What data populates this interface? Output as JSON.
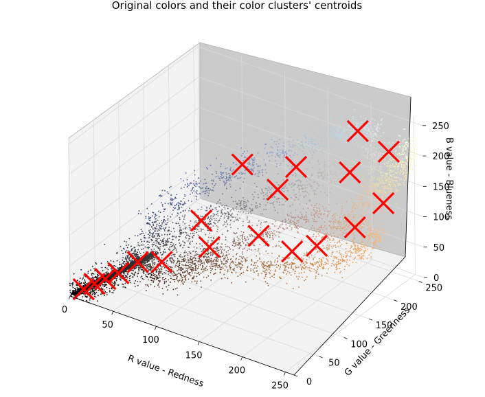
{
  "chart_data": {
    "type": "scatter",
    "projection": "3d",
    "title": "Original colors and their color clusters' centroids",
    "xlabel": "R value - Redness",
    "ylabel": "G value - Greenness",
    "zlabel": "B value - Blueness",
    "xlim": [
      0,
      260
    ],
    "ylim": [
      0,
      260
    ],
    "zlim": [
      0,
      260
    ],
    "xticks": [
      "0",
      "50",
      "100",
      "150",
      "200",
      "250"
    ],
    "yticks": [
      "0",
      "50",
      "100",
      "150",
      "200",
      "250"
    ],
    "zticks": [
      "0",
      "50",
      "100",
      "150",
      "200",
      "250"
    ],
    "grid": true,
    "series": [
      {
        "kind": "points",
        "note": "each point colored by its own RGB value",
        "values": [
          [
            8,
            8,
            8
          ],
          [
            14,
            13,
            12
          ],
          [
            20,
            19,
            18
          ],
          [
            26,
            25,
            24
          ],
          [
            33,
            31,
            30
          ],
          [
            40,
            38,
            37
          ],
          [
            47,
            45,
            44
          ],
          [
            55,
            52,
            50
          ],
          [
            65,
            58,
            52
          ],
          [
            72,
            50,
            38
          ],
          [
            88,
            60,
            42
          ],
          [
            104,
            72,
            50
          ],
          [
            120,
            86,
            60
          ],
          [
            140,
            98,
            62
          ],
          [
            162,
            110,
            62
          ],
          [
            185,
            125,
            65
          ],
          [
            205,
            140,
            70
          ],
          [
            225,
            150,
            80
          ],
          [
            240,
            165,
            95
          ],
          [
            248,
            180,
            110
          ],
          [
            70,
            70,
            75
          ],
          [
            85,
            85,
            95
          ],
          [
            100,
            100,
            110
          ],
          [
            115,
            112,
            120
          ],
          [
            130,
            128,
            132
          ],
          [
            150,
            145,
            150
          ],
          [
            170,
            165,
            165
          ],
          [
            190,
            185,
            180
          ],
          [
            210,
            205,
            195
          ],
          [
            225,
            220,
            210
          ],
          [
            60,
            70,
            110
          ],
          [
            75,
            85,
            135
          ],
          [
            90,
            105,
            160
          ],
          [
            110,
            125,
            175
          ],
          [
            130,
            145,
            190
          ],
          [
            150,
            170,
            205
          ],
          [
            170,
            195,
            215
          ],
          [
            190,
            215,
            225
          ],
          [
            205,
            225,
            235
          ],
          [
            215,
            230,
            240
          ],
          [
            230,
            215,
            160
          ],
          [
            238,
            225,
            170
          ],
          [
            245,
            235,
            185
          ],
          [
            250,
            245,
            200
          ],
          [
            252,
            250,
            220
          ],
          [
            232,
            190,
            150
          ],
          [
            240,
            200,
            165
          ],
          [
            236,
            175,
            130
          ],
          [
            220,
            165,
            125
          ],
          [
            210,
            150,
            110
          ],
          [
            120,
            90,
            80
          ],
          [
            140,
            105,
            95
          ],
          [
            160,
            120,
            110
          ],
          [
            180,
            140,
            125
          ],
          [
            200,
            155,
            140
          ],
          [
            95,
            70,
            60
          ],
          [
            110,
            80,
            70
          ],
          [
            55,
            50,
            55
          ],
          [
            45,
            48,
            60
          ],
          [
            62,
            66,
            85
          ]
        ]
      },
      {
        "name": "centroids",
        "kind": "marker-x",
        "color": "#ff0000",
        "values": [
          [
            10,
            10,
            10
          ],
          [
            18,
            18,
            18
          ],
          [
            26,
            26,
            25
          ],
          [
            36,
            35,
            34
          ],
          [
            50,
            50,
            50
          ],
          [
            72,
            60,
            55
          ],
          [
            95,
            100,
            110
          ],
          [
            110,
            90,
            80
          ],
          [
            150,
            120,
            100
          ],
          [
            180,
            135,
            80
          ],
          [
            200,
            150,
            90
          ],
          [
            165,
            170,
            190
          ],
          [
            155,
            150,
            160
          ],
          [
            210,
            200,
            185
          ],
          [
            240,
            215,
            140
          ],
          [
            235,
            235,
            210
          ],
          [
            120,
            140,
            190
          ],
          [
            205,
            225,
            235
          ],
          [
            230,
            175,
            120
          ]
        ]
      }
    ]
  },
  "colors": {
    "centroid": "#ff0000",
    "pane_back": "#cbcbcb",
    "pane_floor": "#f2f2f2"
  }
}
